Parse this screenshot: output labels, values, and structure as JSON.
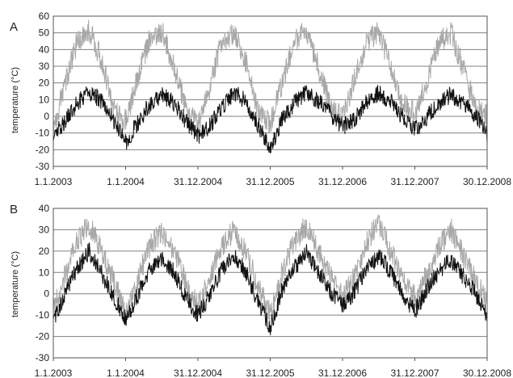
{
  "chart_data": [
    {
      "type": "line",
      "panel_label": "A",
      "ylabel": "temperature (°C)",
      "ylim": [
        -30,
        60
      ],
      "yticks": [
        "-30",
        "-20",
        "-10",
        "0",
        "10",
        "20",
        "30",
        "40",
        "50",
        "60"
      ],
      "xlim": [
        "2003-01-01",
        "2008-12-30"
      ],
      "xtick_labels": [
        "1.1.2003",
        "1.1.2004",
        "31.12.2004",
        "31.12.2005",
        "31.12.2006",
        "31.12.2007",
        "30.12.2008"
      ],
      "xtick_dates": [
        "2003-01-01",
        "2004-01-01",
        "2004-12-31",
        "2005-12-31",
        "2006-12-31",
        "2007-12-31",
        "2008-12-30"
      ],
      "grid": true,
      "series": [
        {
          "color": "#a8a8a8",
          "x": [
            "2003-01-01",
            "2003-03-01",
            "2003-05-01",
            "2003-07-01",
            "2003-09-01",
            "2003-11-01",
            "2004-01-01",
            "2004-03-01",
            "2004-05-01",
            "2004-07-01",
            "2004-09-01",
            "2004-11-01",
            "2005-01-01",
            "2005-03-01",
            "2005-05-01",
            "2005-07-01",
            "2005-09-01",
            "2005-11-01",
            "2006-01-01",
            "2006-03-01",
            "2006-05-01",
            "2006-07-01",
            "2006-09-01",
            "2006-11-01",
            "2007-01-01",
            "2007-03-01",
            "2007-05-01",
            "2007-07-01",
            "2007-09-01",
            "2007-11-01",
            "2008-01-01",
            "2008-03-01",
            "2008-05-01",
            "2008-07-01",
            "2008-09-01",
            "2008-11-01",
            "2008-12-30"
          ],
          "y": [
            -8,
            20,
            44,
            52,
            34,
            5,
            -3,
            22,
            46,
            51,
            30,
            4,
            -5,
            18,
            45,
            50,
            31,
            3,
            -4,
            20,
            44,
            52,
            29,
            6,
            -2,
            22,
            45,
            51,
            30,
            7,
            2,
            21,
            44,
            50,
            28,
            5,
            0
          ]
        },
        {
          "color": "#111111",
          "x": [
            "2003-01-01",
            "2003-03-01",
            "2003-05-01",
            "2003-07-01",
            "2003-09-01",
            "2003-11-01",
            "2004-01-01",
            "2004-03-01",
            "2004-05-01",
            "2004-07-01",
            "2004-09-01",
            "2004-11-01",
            "2005-01-01",
            "2005-03-01",
            "2005-05-01",
            "2005-07-01",
            "2005-09-01",
            "2005-11-01",
            "2006-01-01",
            "2006-03-01",
            "2006-05-01",
            "2006-07-01",
            "2006-09-01",
            "2006-11-01",
            "2007-01-01",
            "2007-03-01",
            "2007-05-01",
            "2007-07-01",
            "2007-09-01",
            "2007-11-01",
            "2008-01-01",
            "2008-03-01",
            "2008-05-01",
            "2008-07-01",
            "2008-09-01",
            "2008-11-01",
            "2008-12-30"
          ],
          "y": [
            -12,
            -3,
            8,
            15,
            9,
            -2,
            -16,
            -4,
            7,
            13,
            8,
            -3,
            -12,
            -6,
            6,
            14,
            9,
            -5,
            -20,
            -2,
            8,
            15,
            9,
            1,
            -6,
            -2,
            8,
            14,
            9,
            -1,
            -8,
            -1,
            8,
            13,
            8,
            1,
            -12
          ]
        }
      ]
    },
    {
      "type": "line",
      "panel_label": "B",
      "ylabel": "temperature (°C)",
      "ylim": [
        -30,
        40
      ],
      "yticks": [
        "-30",
        "-20",
        "-10",
        "0",
        "10",
        "20",
        "30",
        "40"
      ],
      "xlim": [
        "2003-01-01",
        "2008-12-30"
      ],
      "xtick_labels": [
        "1.1.2003",
        "1.1.2004",
        "31.12.2004",
        "31.12.2005",
        "31.12.2006",
        "31.12.2007",
        "30.12.2008"
      ],
      "xtick_dates": [
        "2003-01-01",
        "2004-01-01",
        "2004-12-31",
        "2005-12-31",
        "2006-12-31",
        "2007-12-31",
        "2008-12-30"
      ],
      "grid": true,
      "series": [
        {
          "color": "#a8a8a8",
          "x": [
            "2003-01-01",
            "2003-03-01",
            "2003-05-01",
            "2003-07-01",
            "2003-09-01",
            "2003-11-01",
            "2004-01-01",
            "2004-03-01",
            "2004-05-01",
            "2004-07-01",
            "2004-09-01",
            "2004-11-01",
            "2005-01-01",
            "2005-03-01",
            "2005-05-01",
            "2005-07-01",
            "2005-09-01",
            "2005-11-01",
            "2006-01-01",
            "2006-03-01",
            "2006-05-01",
            "2006-07-01",
            "2006-09-01",
            "2006-11-01",
            "2007-01-01",
            "2007-03-01",
            "2007-05-01",
            "2007-07-01",
            "2007-09-01",
            "2007-11-01",
            "2008-01-01",
            "2008-03-01",
            "2008-05-01",
            "2008-07-01",
            "2008-09-01",
            "2008-11-01",
            "2008-12-30"
          ],
          "y": [
            -8,
            8,
            25,
            32,
            20,
            6,
            -8,
            6,
            22,
            29,
            20,
            5,
            -6,
            8,
            22,
            30,
            19,
            3,
            -10,
            10,
            24,
            32,
            20,
            8,
            -2,
            8,
            24,
            33,
            20,
            6,
            -2,
            9,
            22,
            30,
            18,
            6,
            -4
          ]
        },
        {
          "color": "#111111",
          "x": [
            "2003-01-01",
            "2003-03-01",
            "2003-05-01",
            "2003-07-01",
            "2003-09-01",
            "2003-11-01",
            "2004-01-01",
            "2004-03-01",
            "2004-05-01",
            "2004-07-01",
            "2004-09-01",
            "2004-11-01",
            "2005-01-01",
            "2005-03-01",
            "2005-05-01",
            "2005-07-01",
            "2005-09-01",
            "2005-11-01",
            "2006-01-01",
            "2006-03-01",
            "2006-05-01",
            "2006-07-01",
            "2006-09-01",
            "2006-11-01",
            "2007-01-01",
            "2007-03-01",
            "2007-05-01",
            "2007-07-01",
            "2007-09-01",
            "2007-11-01",
            "2008-01-01",
            "2008-03-01",
            "2008-05-01",
            "2008-07-01",
            "2008-09-01",
            "2008-11-01",
            "2008-12-30"
          ],
          "y": [
            -12,
            0,
            12,
            20,
            10,
            -2,
            -12,
            -1,
            12,
            17,
            10,
            -2,
            -10,
            0,
            11,
            18,
            10,
            -4,
            -16,
            2,
            12,
            20,
            10,
            1,
            -6,
            1,
            12,
            18,
            10,
            -1,
            -8,
            2,
            11,
            16,
            8,
            0,
            -10
          ]
        }
      ]
    }
  ]
}
